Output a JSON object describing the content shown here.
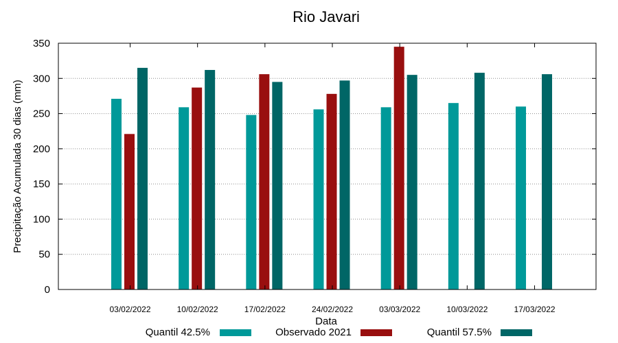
{
  "chart_data": {
    "type": "bar",
    "title": "Rio Javari",
    "xlabel": "Data",
    "ylabel": "Precipitação Acumulada 30 dias (mm)",
    "ylim": [
      0,
      350
    ],
    "yticks": [
      0,
      50,
      100,
      150,
      200,
      250,
      300,
      350
    ],
    "grid": true,
    "legend_position": "bottom",
    "categories": [
      "03/02/2022",
      "10/02/2022",
      "17/02/2022",
      "24/02/2022",
      "03/03/2022",
      "10/03/2022",
      "17/03/2022"
    ],
    "series": [
      {
        "name": "Quantil 42.5%",
        "color": "#009999",
        "values": [
          271,
          259,
          248,
          256,
          259,
          265,
          260
        ]
      },
      {
        "name": "Observado 2021",
        "color": "#990f0f",
        "values": [
          221,
          287,
          306,
          278,
          345,
          null,
          null
        ]
      },
      {
        "name": "Quantil 57.5%",
        "color": "#006666",
        "values": [
          315,
          312,
          295,
          297,
          305,
          308,
          306
        ]
      }
    ]
  }
}
